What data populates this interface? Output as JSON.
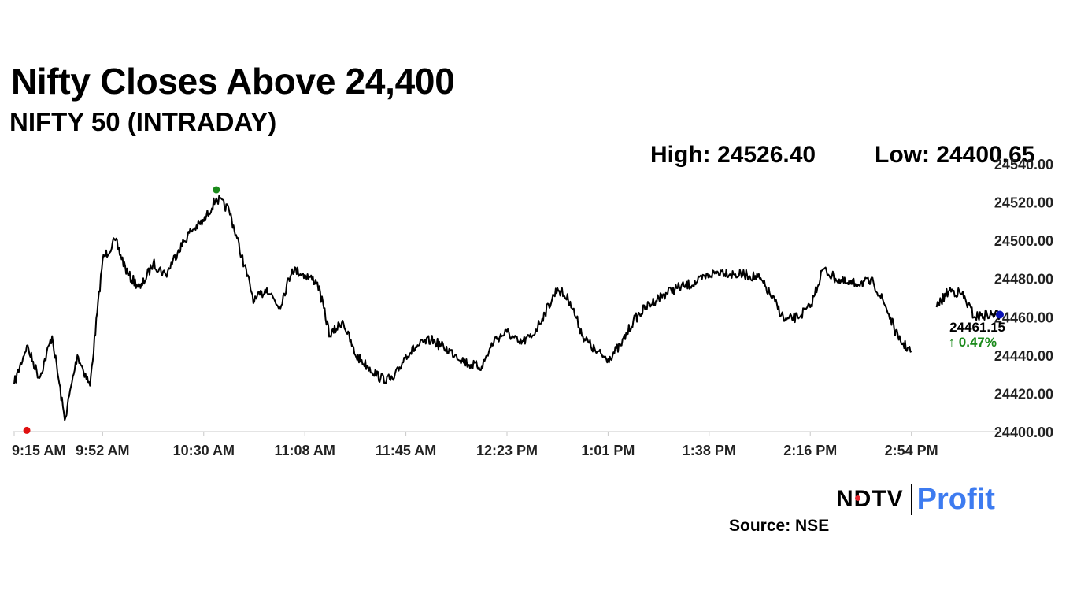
{
  "title": "Nifty Closes Above 24,400",
  "subtitle": "NIFTY 50 (INTRADAY)",
  "stats": {
    "high": "High: 24526.40",
    "low": "Low: 24400.65"
  },
  "brand": {
    "ndtv": "NDTV",
    "profit": "Profit",
    "accent": "#e3262f",
    "profit_color": "#3d7bf0"
  },
  "source": "Source: NSE",
  "chart_data": {
    "type": "line",
    "x": [
      "9:15 AM",
      "9:21 AM",
      "9:27 AM",
      "9:32 AM",
      "9:37 AM",
      "9:42 AM",
      "9:47 AM",
      "9:52 AM",
      "9:57 AM",
      "10:02 AM",
      "10:07 AM",
      "10:12 AM",
      "10:17 AM",
      "10:22 AM",
      "10:27 AM",
      "10:30 AM",
      "10:33 AM",
      "10:38 AM",
      "10:43 AM",
      "10:48 AM",
      "10:53 AM",
      "10:58 AM",
      "11:03 AM",
      "11:08 AM",
      "11:13 AM",
      "11:18 AM",
      "11:23 AM",
      "11:28 AM",
      "11:33 AM",
      "11:38 AM",
      "11:42 AM",
      "11:45 AM",
      "11:50 AM",
      "11:55 AM",
      "12:00 PM",
      "12:05 PM",
      "12:10 PM",
      "12:15 PM",
      "12:19 PM",
      "12:23 PM",
      "12:28 PM",
      "12:33 PM",
      "12:38 PM",
      "12:43 PM",
      "12:48 PM",
      "12:53 PM",
      "12:57 PM",
      "1:01 PM",
      "1:06 PM",
      "1:11 PM",
      "1:16 PM",
      "1:21 PM",
      "1:26 PM",
      "1:31 PM",
      "1:35 PM",
      "1:38 PM",
      "1:43 PM",
      "1:48 PM",
      "1:53 PM",
      "1:58 PM",
      "2:03 PM",
      "2:08 PM",
      "2:12 PM",
      "2:16 PM",
      "2:21 PM",
      "2:26 PM",
      "2:31 PM",
      "2:36 PM",
      "2:41 PM",
      "2:46 PM",
      "2:50 PM",
      "2:54 PM",
      "2:59 PM",
      "3:04 PM",
      "3:09 PM",
      "3:14 PM",
      "3:19 PM",
      "3:24 PM",
      "3:29 PM"
    ],
    "y": [
      24425,
      24445,
      24428,
      24450,
      24406,
      24440,
      24424,
      24490,
      24500,
      24482,
      24475,
      24488,
      24482,
      24495,
      24505,
      24510,
      24522,
      24516,
      24492,
      24468,
      24475,
      24465,
      24485,
      24482,
      24478,
      24450,
      24458,
      24440,
      24434,
      24428,
      24427,
      24440,
      24445,
      24448,
      24444,
      24440,
      24435,
      24434,
      24448,
      24452,
      24446,
      24450,
      24462,
      24475,
      24468,
      24450,
      24442,
      24438,
      24445,
      24458,
      24465,
      24470,
      24474,
      24476,
      24478,
      24482,
      24484,
      24482,
      24482,
      24480,
      24470,
      24458,
      24460,
      24465,
      24485,
      24480,
      24477,
      24478,
      24478,
      24465,
      24448,
      24442,
      null,
      24465,
      24474,
      24472,
      24460,
      24461.15,
      24461.15
    ],
    "ylim": [
      24400,
      24540
    ],
    "yticks": [
      "24540.00",
      "24520.00",
      "24500.00",
      "24480.00",
      "24460.00",
      "24440.00",
      "24420.00",
      "24400.00"
    ],
    "xticks": [
      "9:15 AM",
      "9:52 AM",
      "10:30 AM",
      "11:08 AM",
      "11:45 AM",
      "12:23 PM",
      "1:01 PM",
      "1:38 PM",
      "2:16 PM",
      "2:54 PM"
    ],
    "high": {
      "time": "10:33 AM",
      "value": 24526.4,
      "color": "#1a8a1a"
    },
    "low": {
      "time": "9:21 AM",
      "value": 24400.65,
      "color": "#e01010"
    },
    "last": {
      "value": 24461.15,
      "label": "24461.15",
      "change": "↑ 0.47%",
      "color": "#0a12b5",
      "change_color": "#1a8a1a"
    },
    "grid": false,
    "line_color": "#000000"
  }
}
